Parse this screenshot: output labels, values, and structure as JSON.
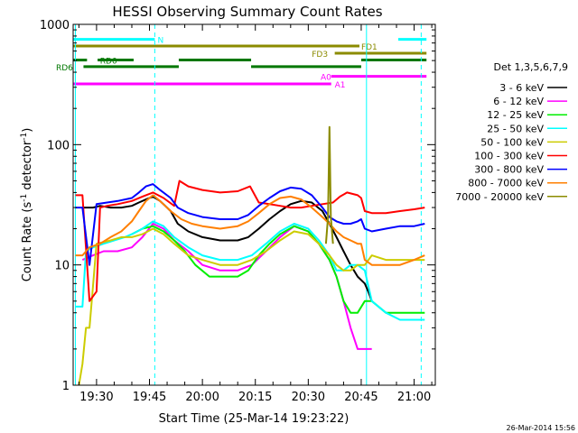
{
  "chart_data": {
    "type": "line",
    "title": "HESSI Observing Summary Count Rates",
    "xlabel": "Start Time (25-Mar-14 19:23:22)",
    "ylabel_main": "Count Rate (s",
    "ylabel_sup1": "-1",
    "ylabel_mid": " detector",
    "ylabel_sup2": "-1",
    "ylabel_end": ")",
    "yscale": "log",
    "ylim": [
      1,
      1000
    ],
    "xlim_minutes": [
      1163.37,
      1266
    ],
    "x_ticks": [
      {
        "minute": 1170,
        "label": "19:30"
      },
      {
        "minute": 1185,
        "label": "19:45"
      },
      {
        "minute": 1200,
        "label": "20:00"
      },
      {
        "minute": 1215,
        "label": "20:15"
      },
      {
        "minute": 1230,
        "label": "20:30"
      },
      {
        "minute": 1245,
        "label": "20:45"
      },
      {
        "minute": 1260,
        "label": "21:00"
      }
    ],
    "y_ticks": [
      {
        "value": 1,
        "label": "1"
      },
      {
        "value": 10,
        "label": "10"
      },
      {
        "value": 100,
        "label": "100"
      },
      {
        "value": 1000,
        "label": "1000"
      }
    ],
    "legend": {
      "title": "Det 1,3,5,6,7,9",
      "placement": "right",
      "entries": [
        {
          "label": "3 - 6 keV",
          "color": "#000000"
        },
        {
          "label": "6 - 12 keV",
          "color": "#ff00ff"
        },
        {
          "label": "12 - 25 keV",
          "color": "#00ee00"
        },
        {
          "label": "25 - 50 keV",
          "color": "#00ffff"
        },
        {
          "label": "50 - 100 keV",
          "color": "#cccc00"
        },
        {
          "label": "100 - 300 keV",
          "color": "#ff0000"
        },
        {
          "label": "300 - 800 keV",
          "color": "#0000ff"
        },
        {
          "label": "800 - 7000 keV",
          "color": "#ff7f00"
        },
        {
          "label": "7000 - 20000 keV",
          "color": "#8b8b00"
        }
      ]
    },
    "flag_bars": [
      {
        "label": "N",
        "color": "#00ffff",
        "value": 750,
        "segments": [
          [
            1163.4,
            1186.5
          ],
          [
            1255.5,
            1263.5
          ]
        ],
        "label_minute": 1187.3
      },
      {
        "label": "FD1",
        "color": "#8b8b00",
        "value": 660,
        "segments": [
          [
            1163.4,
            1244.5
          ]
        ],
        "label_minute": 1245.0
      },
      {
        "label": "FD3",
        "color": "#8b8b00",
        "value": 575,
        "segments": [
          [
            1237.5,
            1263.5
          ]
        ],
        "label_minute": 1231.0
      },
      {
        "label": "RD0",
        "color": "#007700",
        "value": 505,
        "segments": [
          [
            1163.4,
            1167.3
          ],
          [
            1170.3,
            1180.5
          ],
          [
            1193.3,
            1213.8
          ],
          [
            1245.0,
            1263.5
          ]
        ],
        "label_minute": 1171.0
      },
      {
        "label": "RD6",
        "color": "#007700",
        "value": 445,
        "segments": [
          [
            1166.3,
            1193.3
          ],
          [
            1213.8,
            1245.0
          ]
        ],
        "label_minute": 1158.5
      },
      {
        "label": "A0",
        "color": "#ff00ff",
        "value": 370,
        "segments": [
          [
            1236.5,
            1263.5
          ]
        ],
        "label_minute": 1233.5
      },
      {
        "label": "A1",
        "color": "#ff00ff",
        "value": 320,
        "segments": [
          [
            1163.4,
            1236.5
          ]
        ],
        "label_minute": 1237.5
      }
    ],
    "vertical_lines": [
      {
        "minute": 1164.0,
        "color": "#00ffff",
        "style": "solid"
      },
      {
        "minute": 1186.5,
        "color": "#00ffff",
        "style": "dashed"
      },
      {
        "minute": 1246.5,
        "color": "#00ffff",
        "style": "solid"
      },
      {
        "minute": 1262.0,
        "color": "#00ffff",
        "style": "dashed"
      }
    ],
    "series": [
      {
        "name": "3 - 6 keV",
        "color": "#000000",
        "x": [
          1166,
          1169,
          1171,
          1174,
          1177,
          1180,
          1182,
          1184,
          1186,
          1188,
          1191,
          1193,
          1196,
          1200,
          1205,
          1210,
          1213,
          1216,
          1219,
          1222,
          1225,
          1228,
          1231,
          1234,
          1236,
          1238,
          1240,
          1242,
          1244,
          1246,
          1247,
          1248
        ],
        "y": [
          30,
          30,
          31,
          30,
          30,
          31,
          33,
          35,
          37,
          34,
          28,
          22,
          19,
          17,
          16,
          16,
          17,
          20,
          24,
          28,
          32,
          34,
          33,
          28,
          22,
          17,
          13,
          10,
          8,
          7,
          6,
          5
        ]
      },
      {
        "name": "6 - 12 keV",
        "color": "#ff00ff",
        "x": [
          1166,
          1169,
          1172,
          1176,
          1180,
          1183,
          1186,
          1189,
          1192,
          1196,
          1200,
          1205,
          1210,
          1214,
          1218,
          1222,
          1226,
          1230,
          1233,
          1236,
          1238,
          1240,
          1242,
          1244,
          1246,
          1248
        ],
        "y": [
          11,
          12,
          13,
          13,
          14,
          17,
          22,
          20,
          16,
          13,
          10,
          9,
          9,
          10,
          13,
          17,
          21,
          19,
          15,
          11,
          8,
          5,
          3,
          2,
          2,
          2
        ]
      },
      {
        "name": "12 - 25 keV",
        "color": "#00ee00",
        "x": [
          1180,
          1183,
          1186,
          1189,
          1192,
          1195,
          1198,
          1202,
          1206,
          1210,
          1213,
          1216,
          1219,
          1222,
          1226,
          1230,
          1233,
          1236,
          1238,
          1240,
          1242,
          1244,
          1246,
          1248,
          1252,
          1256,
          1260,
          1263
        ],
        "y": [
          18,
          20,
          21,
          19,
          16,
          13,
          10,
          8,
          8,
          8,
          9,
          12,
          15,
          18,
          21,
          19,
          15,
          11,
          8,
          5,
          4,
          4,
          5,
          5,
          4,
          4,
          4,
          4
        ]
      },
      {
        "name": "25 - 50 keV",
        "color": "#00ffff",
        "x": [
          1164,
          1166,
          1167,
          1169,
          1172,
          1175,
          1178,
          1180,
          1183,
          1186,
          1189,
          1192,
          1196,
          1200,
          1205,
          1210,
          1214,
          1218,
          1222,
          1226,
          1230,
          1233,
          1236,
          1238,
          1240,
          1242,
          1244,
          1246,
          1248,
          1252,
          1256,
          1260,
          1263
        ],
        "y": [
          4.5,
          4.5,
          13,
          14,
          15,
          16,
          17,
          18,
          20,
          23,
          21,
          17,
          14,
          12,
          11,
          11,
          12,
          15,
          19,
          22,
          20,
          16,
          12,
          9,
          9,
          10,
          10,
          9,
          5,
          4,
          3.5,
          3.5,
          3.5
        ]
      },
      {
        "name": "50 - 100 keV",
        "color": "#cccc00",
        "x": [
          1165,
          1166,
          1167,
          1168,
          1170,
          1174,
          1177,
          1180,
          1183,
          1186,
          1189,
          1192,
          1196,
          1200,
          1205,
          1210,
          1214,
          1218,
          1222,
          1226,
          1230,
          1233,
          1236,
          1238,
          1240,
          1242,
          1244,
          1246,
          1248,
          1252,
          1256,
          1260,
          1263
        ],
        "y": [
          1,
          1.5,
          3,
          3,
          15,
          16,
          17,
          17,
          18,
          20,
          18,
          15,
          12,
          11,
          10,
          10,
          11,
          13,
          16,
          19,
          18,
          15,
          12,
          10,
          9,
          9,
          10,
          10,
          12,
          11,
          11,
          11,
          11
        ]
      },
      {
        "name": "100 - 300 keV",
        "color": "#ff0000",
        "x": [
          1164,
          1166,
          1168,
          1170,
          1171,
          1173,
          1176,
          1180,
          1183,
          1186,
          1189,
          1192,
          1193.5,
          1196,
          1200,
          1205,
          1210,
          1213.5,
          1216,
          1219,
          1222,
          1225,
          1228,
          1231,
          1234,
          1237,
          1239,
          1241,
          1244,
          1245,
          1246,
          1248,
          1252,
          1256,
          1260,
          1263
        ],
        "y": [
          38,
          38,
          5,
          6,
          30,
          31,
          32,
          34,
          37,
          40,
          36,
          31,
          50,
          45,
          42,
          40,
          41,
          45,
          33,
          32,
          31,
          30,
          30,
          31,
          32,
          33,
          37,
          40,
          38,
          36,
          28,
          27,
          27,
          28,
          29,
          30
        ]
      },
      {
        "name": "300 - 800 keV",
        "color": "#0000ff",
        "x": [
          1164,
          1166,
          1168,
          1170,
          1173,
          1176,
          1180,
          1182,
          1184,
          1186,
          1188,
          1191,
          1193,
          1196,
          1200,
          1205,
          1210,
          1213,
          1216,
          1219,
          1222,
          1225,
          1228,
          1231,
          1234,
          1236,
          1238,
          1240,
          1242,
          1244,
          1245,
          1246,
          1248,
          1252,
          1256,
          1260,
          1263
        ],
        "y": [
          30,
          30,
          10,
          32,
          33,
          34,
          36,
          40,
          45,
          47,
          42,
          36,
          30,
          27,
          25,
          24,
          24,
          26,
          31,
          36,
          41,
          44,
          43,
          38,
          30,
          25,
          23,
          22,
          22,
          23,
          24,
          20,
          19,
          20,
          21,
          21,
          22
        ]
      },
      {
        "name": "800 - 7000 keV",
        "color": "#ff7f00",
        "x": [
          1164,
          1166,
          1168,
          1171,
          1174,
          1177,
          1180,
          1182,
          1184,
          1186,
          1188,
          1191,
          1194,
          1197,
          1200,
          1205,
          1210,
          1213,
          1216,
          1219,
          1222,
          1225,
          1228,
          1231,
          1234,
          1236,
          1238,
          1240,
          1242,
          1244,
          1245,
          1246,
          1248,
          1252,
          1256,
          1260,
          1263
        ],
        "y": [
          12,
          12,
          14,
          15,
          17,
          19,
          23,
          28,
          34,
          38,
          34,
          28,
          24,
          22,
          21,
          20,
          21,
          23,
          27,
          32,
          36,
          37,
          35,
          30,
          25,
          22,
          19,
          17,
          16,
          15,
          15,
          11,
          10,
          10,
          10,
          11,
          12
        ]
      },
      {
        "name": "7000 - 20000 keV",
        "color": "#8b8b00",
        "x": [
          1235,
          1235.6,
          1236,
          1236.4,
          1237
        ],
        "y": [
          15,
          25,
          140,
          25,
          15
        ]
      }
    ]
  },
  "footer": {
    "timestamp": "26-Mar-2014 15:56"
  }
}
